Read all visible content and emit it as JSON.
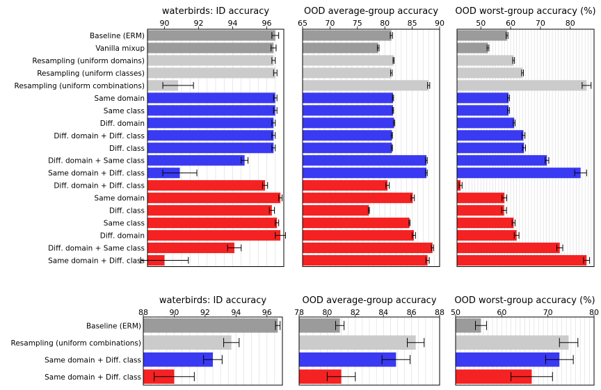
{
  "colors": {
    "gray": "#9b9b9b",
    "light": "#cbcbcb",
    "blue": "#3a3af2",
    "red": "#f42222",
    "grid": "#d9d9d9"
  },
  "chart_data": [
    {
      "type": "bar",
      "orientation": "horizontal",
      "panels": [
        {
          "title": "waterbirds: ID accuracy",
          "xlim": [
            89,
            97
          ],
          "ticks": [
            90,
            92,
            94,
            96
          ],
          "values": [
            96.5,
            96.4,
            96.4,
            96.5,
            90.8,
            96.5,
            96.5,
            96.4,
            96.4,
            96.4,
            94.7,
            90.9,
            95.9,
            96.8,
            96.3,
            96.6,
            96.8,
            94.1,
            90.0
          ],
          "errors": [
            0.2,
            0.15,
            0.1,
            0.1,
            0.9,
            0.1,
            0.1,
            0.1,
            0.1,
            0.1,
            0.2,
            1.0,
            0.15,
            0.1,
            0.15,
            0.1,
            0.3,
            0.4,
            1.4
          ]
        },
        {
          "title": "OOD average-group accuracy",
          "xlim": [
            65,
            90
          ],
          "ticks": [
            65,
            70,
            75,
            80,
            85,
            90
          ],
          "values": [
            81.2,
            78.8,
            81.6,
            81.2,
            88.0,
            81.5,
            81.5,
            81.7,
            81.3,
            81.3,
            87.6,
            87.6,
            80.5,
            85.1,
            77.1,
            84.5,
            85.3,
            88.7,
            87.8
          ],
          "errors": [
            0.2,
            0.15,
            0.1,
            0.15,
            0.2,
            0.1,
            0.1,
            0.1,
            0.1,
            0.1,
            0.15,
            0.15,
            0.3,
            0.3,
            0.1,
            0.1,
            0.3,
            0.2,
            0.3
          ]
        },
        {
          "title": "OOD worst-group accuracy (%)",
          "xlim": [
            42,
            88
          ],
          "ticks": [
            50,
            60,
            70,
            80
          ],
          "values": [
            58.8,
            52.4,
            61.0,
            64.0,
            85.5,
            59.3,
            59.3,
            61.2,
            64.3,
            64.5,
            72.2,
            83.5,
            43.2,
            57.9,
            57.8,
            61.0,
            62.0,
            76.5,
            85.5
          ],
          "errors": [
            0.3,
            0.3,
            0.3,
            0.3,
            1.5,
            0.3,
            0.3,
            0.3,
            0.5,
            0.5,
            0.6,
            2.0,
            0.5,
            0.8,
            0.8,
            0.5,
            0.8,
            1.0,
            1.0
          ]
        }
      ],
      "rows": [
        {
          "label": "Baseline (ERM)",
          "color": "gray"
        },
        {
          "label": "Vanilla mixup",
          "color": "gray"
        },
        {
          "label": "Resampling (uniform domains)",
          "color": "light"
        },
        {
          "label": "Resampling (uniform classes)",
          "color": "light"
        },
        {
          "label": "Resampling (uniform combinations)",
          "color": "light"
        },
        {
          "label": "Same domain",
          "color": "blue"
        },
        {
          "label": "Same class",
          "color": "blue"
        },
        {
          "label": "Diff. domain",
          "color": "blue"
        },
        {
          "label": "Diff. domain + Diff. class",
          "color": "blue"
        },
        {
          "label": "Diff. class",
          "color": "blue"
        },
        {
          "label": "Diff. domain + Same class",
          "color": "blue"
        },
        {
          "label": "Same domain + Diff. class",
          "color": "blue"
        },
        {
          "label": "Diff. domain + Diff. class",
          "color": "red"
        },
        {
          "label": "Same domain",
          "color": "red"
        },
        {
          "label": "Diff. class",
          "color": "red"
        },
        {
          "label": "Same class",
          "color": "red"
        },
        {
          "label": "Diff. domain",
          "color": "red"
        },
        {
          "label": "Diff. domain + Same class",
          "color": "red"
        },
        {
          "label": "Same domain + Diff. class",
          "color": "red"
        }
      ],
      "grid": true
    },
    {
      "type": "bar",
      "orientation": "horizontal",
      "panels": [
        {
          "title": "waterbirds: ID accuracy",
          "xlim": [
            88,
            97
          ],
          "ticks": [
            88,
            90,
            92,
            94,
            96
          ],
          "values": [
            96.7,
            93.7,
            92.5,
            90.0
          ],
          "errors": [
            0.15,
            0.5,
            0.6,
            1.3
          ]
        },
        {
          "title": "OOD average-group accuracy",
          "xlim": [
            78,
            88
          ],
          "ticks": [
            78,
            80,
            82,
            84,
            86,
            88
          ],
          "values": [
            80.9,
            86.3,
            84.9,
            81.0
          ],
          "errors": [
            0.3,
            0.6,
            1.0,
            1.0
          ]
        },
        {
          "title": "OOD worst-group accuracy (%)",
          "xlim": [
            50,
            80
          ],
          "ticks": [
            50,
            60,
            70,
            80
          ],
          "values": [
            55.5,
            74.5,
            72.5,
            66.5
          ],
          "errors": [
            1.2,
            2.0,
            3.0,
            4.5
          ]
        }
      ],
      "rows": [
        {
          "label": "Baseline (ERM)",
          "color": "gray"
        },
        {
          "label": "Resampling (uniform combinations)",
          "color": "light"
        },
        {
          "label": "Same domain + Diff. class",
          "color": "blue"
        },
        {
          "label": "Same domain + Diff. class",
          "color": "red"
        }
      ],
      "grid": true
    }
  ]
}
